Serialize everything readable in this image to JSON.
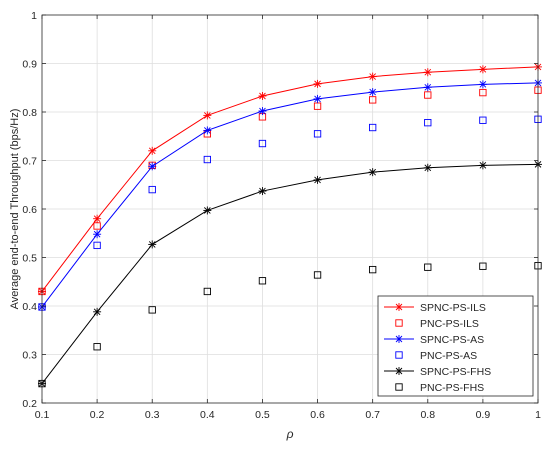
{
  "chart_data": {
    "type": "line",
    "title": "",
    "xlabel": "ρ",
    "ylabel": "Average end-to-end Throughput (bps/Hz)",
    "xlim": [
      0.1,
      1.0
    ],
    "ylim": [
      0.2,
      1.0
    ],
    "x": [
      0.1,
      0.2,
      0.3,
      0.4,
      0.5,
      0.6,
      0.7,
      0.8,
      0.9,
      1.0
    ],
    "x_tick_labels": [
      "0.1",
      "0.2",
      "0.3",
      "0.4",
      "0.5",
      "0.6",
      "0.7",
      "0.8",
      "0.9",
      "1"
    ],
    "y_ticks": [
      0.2,
      0.3,
      0.4,
      0.5,
      0.6,
      0.7,
      0.8,
      0.9,
      1.0
    ],
    "y_tick_labels": [
      "0.2",
      "0.3",
      "0.4",
      "0.5",
      "0.6",
      "0.7",
      "0.8",
      "0.9",
      "1"
    ],
    "grid": true,
    "legend_position": "bottom-right",
    "series": [
      {
        "name": "SPNC-PS-ILS",
        "color": "#ff0000",
        "marker": "asterisk",
        "line": true,
        "values": [
          0.43,
          0.58,
          0.72,
          0.793,
          0.833,
          0.858,
          0.873,
          0.882,
          0.888,
          0.893
        ]
      },
      {
        "name": "PNC-PS-ILS",
        "color": "#ff0000",
        "marker": "square",
        "line": false,
        "values": [
          0.43,
          0.565,
          0.69,
          0.755,
          0.79,
          0.812,
          0.825,
          0.835,
          0.84,
          0.845
        ]
      },
      {
        "name": "SPNC-PS-AS",
        "color": "#0000ff",
        "marker": "asterisk",
        "line": true,
        "values": [
          0.398,
          0.548,
          0.688,
          0.762,
          0.802,
          0.827,
          0.841,
          0.851,
          0.857,
          0.86
        ]
      },
      {
        "name": "PNC-PS-AS",
        "color": "#0000ff",
        "marker": "square",
        "line": false,
        "values": [
          0.398,
          0.525,
          0.64,
          0.702,
          0.735,
          0.755,
          0.768,
          0.778,
          0.783,
          0.785
        ]
      },
      {
        "name": "SPNC-PS-FHS",
        "color": "#000000",
        "marker": "asterisk",
        "line": true,
        "values": [
          0.24,
          0.388,
          0.527,
          0.597,
          0.637,
          0.66,
          0.676,
          0.685,
          0.69,
          0.692
        ]
      },
      {
        "name": "PNC-PS-FHS",
        "color": "#000000",
        "marker": "square",
        "line": false,
        "values": [
          0.24,
          0.316,
          0.392,
          0.43,
          0.452,
          0.464,
          0.475,
          0.48,
          0.482,
          0.483
        ]
      }
    ]
  }
}
